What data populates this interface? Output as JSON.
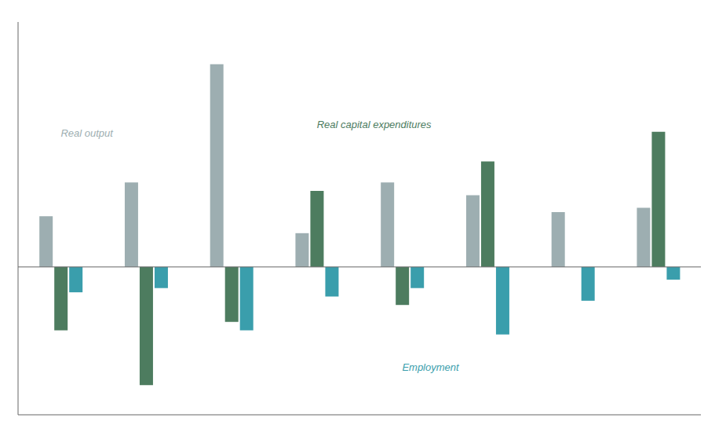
{
  "chart_data": {
    "type": "bar",
    "categories": [
      null,
      null,
      null,
      null,
      null,
      null,
      null,
      null
    ],
    "series": [
      {
        "name": "Real output",
        "color": "#9daeb1",
        "values": [
          12,
          20,
          48,
          8,
          20,
          17,
          13,
          14
        ]
      },
      {
        "name": "Real capital expenditures",
        "color": "#4d7c5f",
        "values": [
          -15,
          -28,
          -13,
          18,
          -9,
          25,
          0,
          32
        ]
      },
      {
        "name": "Employment",
        "color": "#3a9eac",
        "values": [
          -6,
          -5,
          -15,
          -7,
          -5,
          -16,
          -8,
          -3
        ]
      }
    ],
    "ylim": [
      -35,
      58
    ],
    "tick_labels": false
  }
}
